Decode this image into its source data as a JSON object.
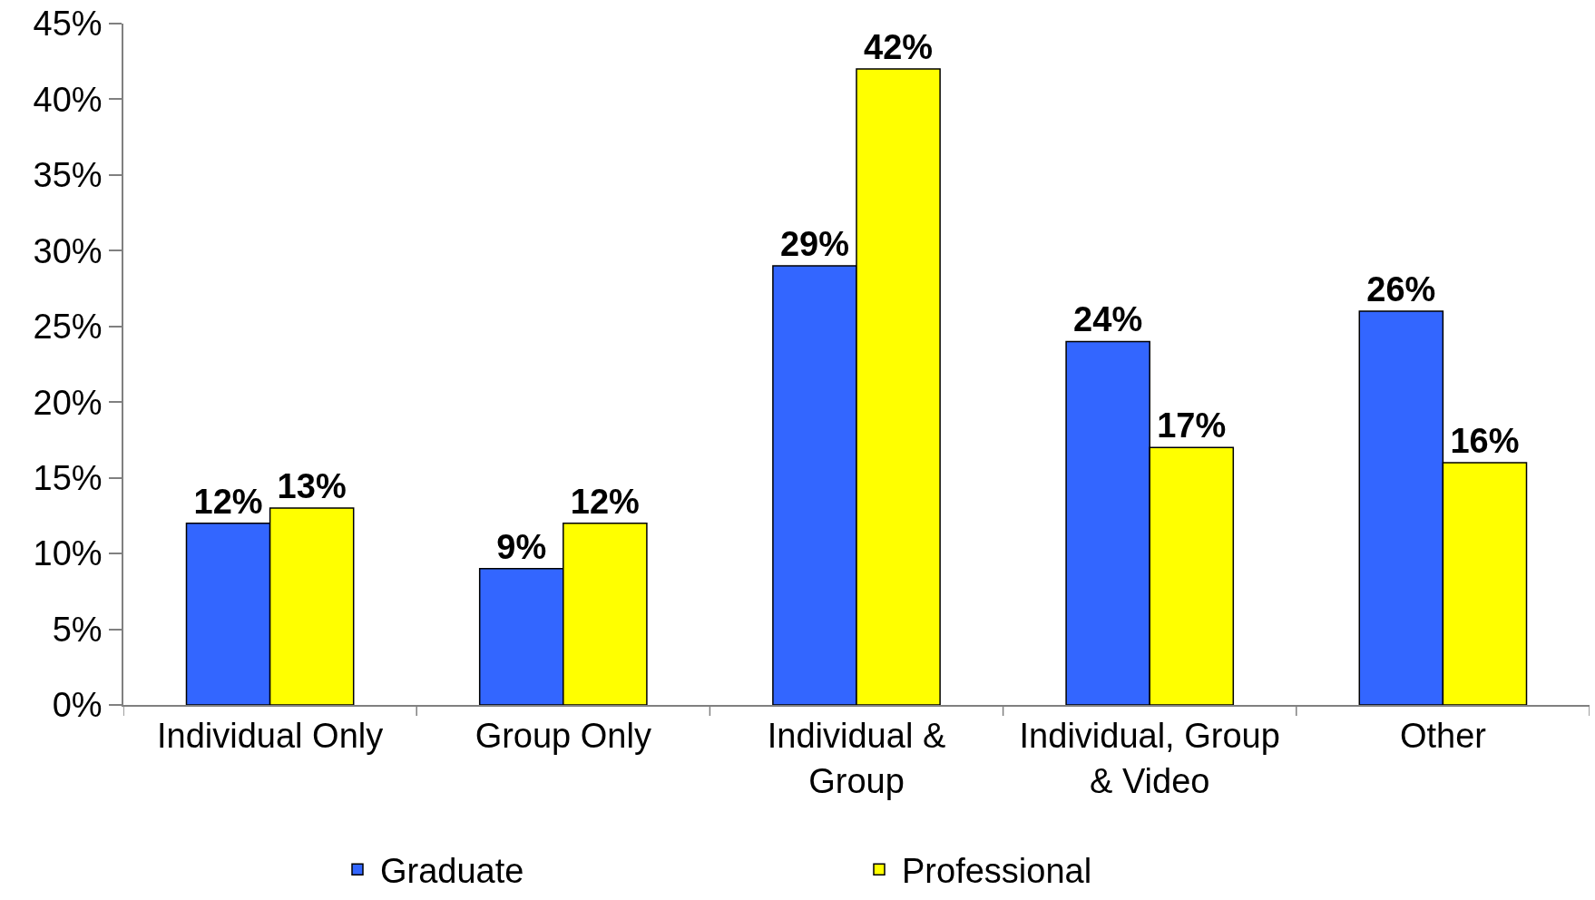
{
  "chart_data": {
    "type": "bar",
    "categories": [
      "Individual Only",
      "Group Only",
      "Individual & Group",
      "Individual, Group & Video",
      "Other"
    ],
    "series": [
      {
        "name": "Graduate",
        "color": "#3366ff",
        "values": [
          12,
          9,
          29,
          24,
          26
        ],
        "value_labels": [
          "12%",
          "9%",
          "29%",
          "24%",
          "26%"
        ]
      },
      {
        "name": "Professional",
        "color": "#ffff00",
        "values": [
          13,
          12,
          42,
          17,
          16
        ],
        "value_labels": [
          "13%",
          "12%",
          "42%",
          "17%",
          "16%"
        ]
      }
    ],
    "ylim": [
      0,
      45
    ],
    "yticks": [
      {
        "value": 0,
        "label": "0%"
      },
      {
        "value": 5,
        "label": "5%"
      },
      {
        "value": 10,
        "label": "10%"
      },
      {
        "value": 15,
        "label": "15%"
      },
      {
        "value": 20,
        "label": "20%"
      },
      {
        "value": 25,
        "label": "25%"
      },
      {
        "value": 30,
        "label": "30%"
      },
      {
        "value": 35,
        "label": "35%"
      },
      {
        "value": 40,
        "label": "40%"
      },
      {
        "value": 45,
        "label": "45%"
      }
    ],
    "legend": "bottom"
  }
}
